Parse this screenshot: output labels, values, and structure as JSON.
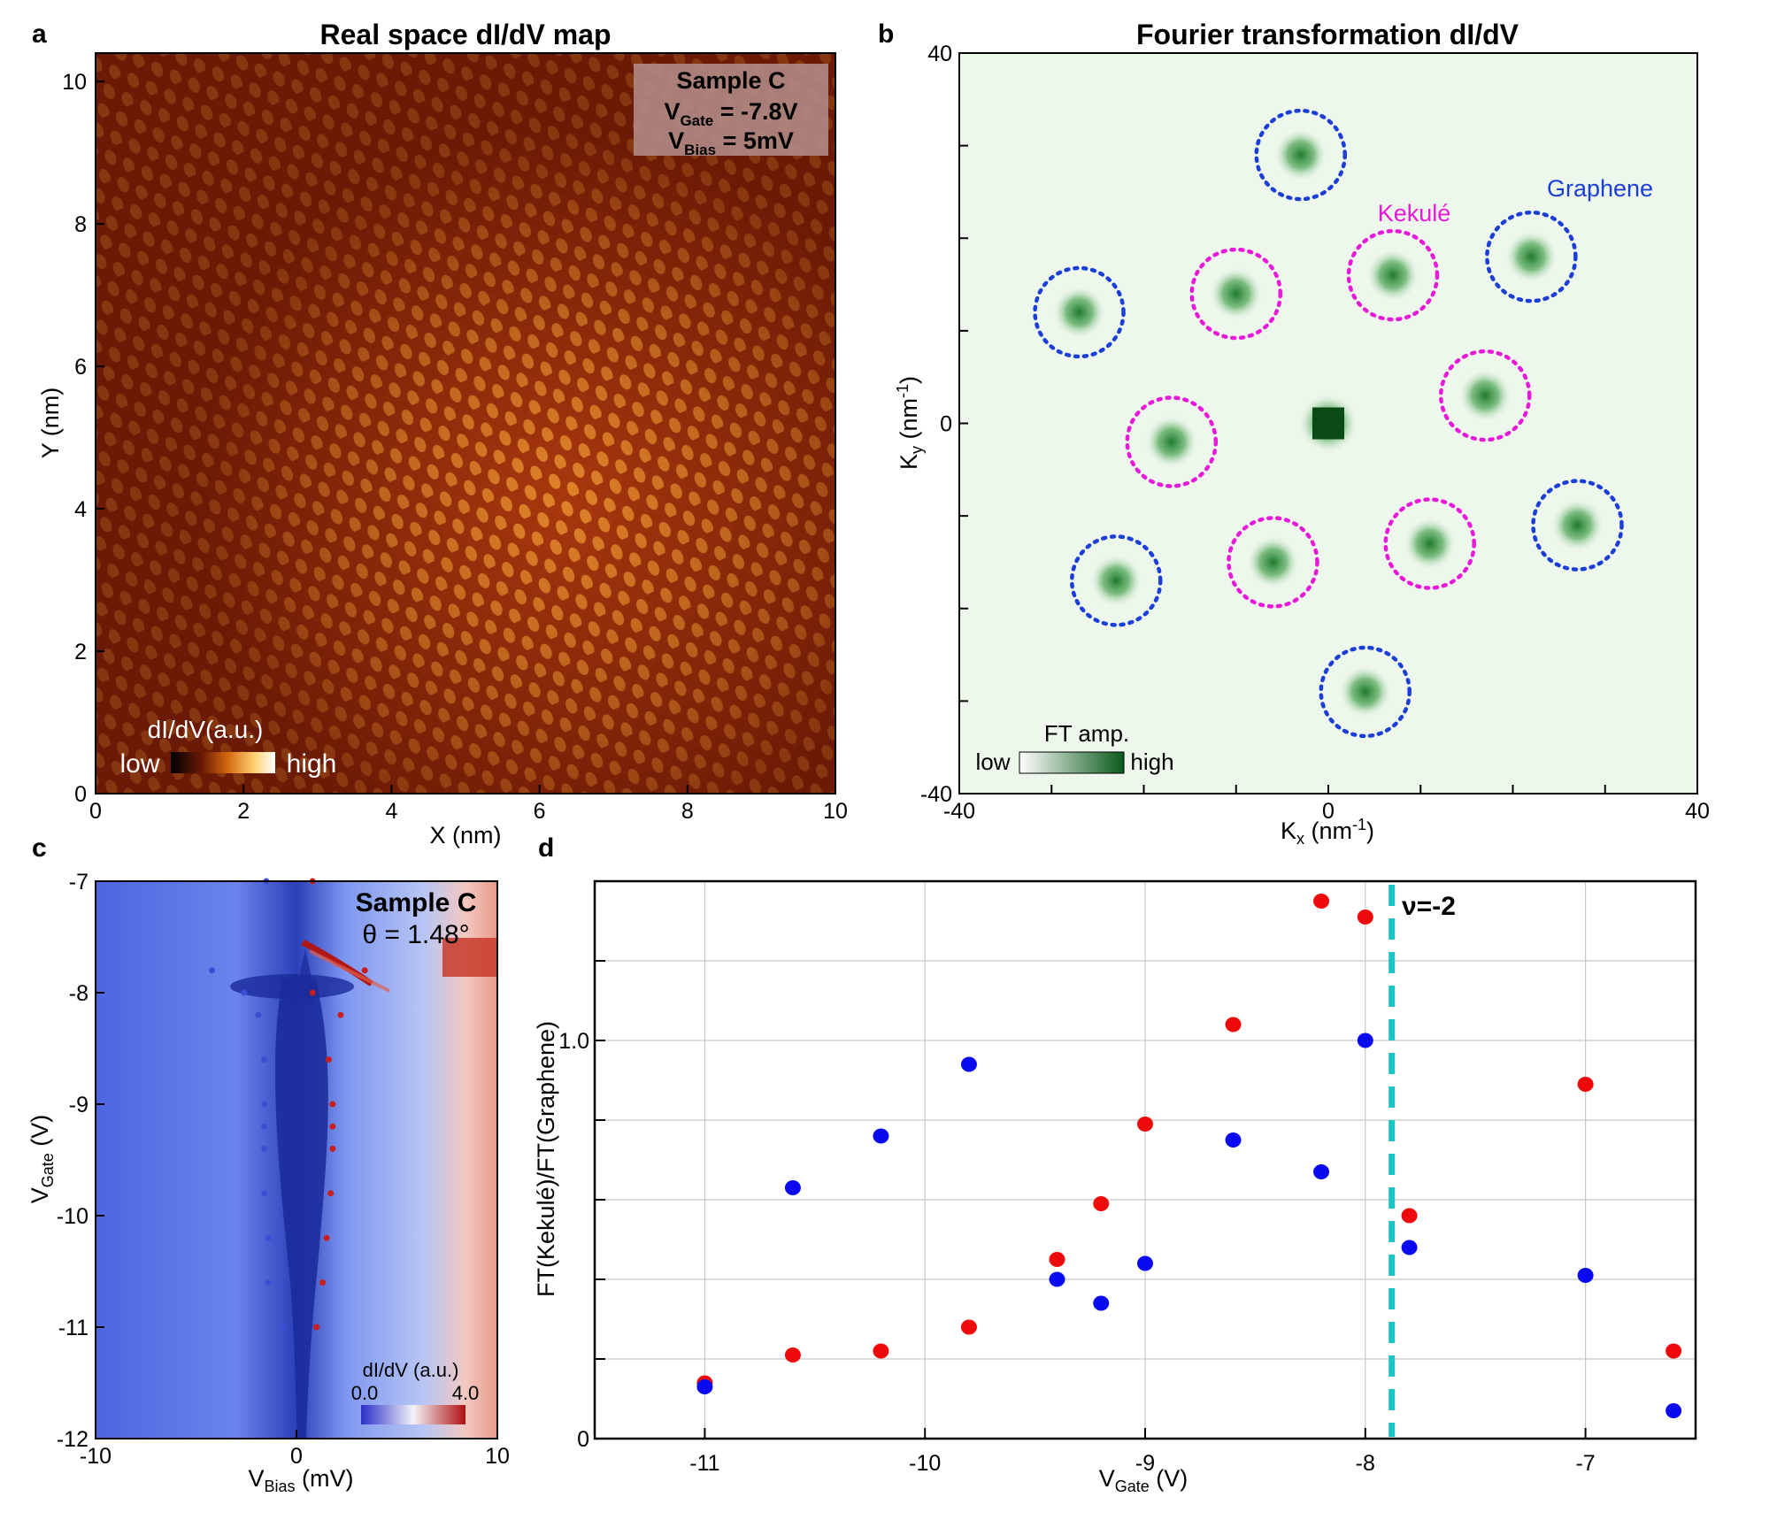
{
  "panels": {
    "a": {
      "letter": "a",
      "title": "Real space dI/dV map",
      "xlabel": "X (nm)",
      "ylabel": "Y (nm)",
      "xticks": [
        "0",
        "2",
        "4",
        "6",
        "8",
        "10"
      ],
      "yticks": [
        "0",
        "2",
        "4",
        "6",
        "8",
        "10"
      ],
      "info": {
        "line1": "Sample C",
        "v_gate_main": "V",
        "v_gate_sub": "Gate",
        "v_gate_val": " = -7.8V",
        "v_bias_main": "V",
        "v_bias_sub": "Bias",
        "v_bias_val": " = 5mV"
      },
      "colorbar": {
        "title": "dI/dV(a.u.)",
        "low": "low",
        "high": "high"
      },
      "colors": {
        "bg": "#6b1a05",
        "bright": "#ffb24a"
      }
    },
    "b": {
      "letter": "b",
      "title": "Fourier transformation dI/dV",
      "xlabel_main": "K",
      "xlabel_sub": "x",
      "xlabel_rest": " (nm",
      "xlabel_sup": "-1",
      "xlabel_end": ")",
      "ylabel_main": "K",
      "ylabel_sub": "y",
      "ylabel_rest": " (nm",
      "ylabel_sup": "-1",
      "ylabel_end": ")",
      "xticks": [
        "-40",
        "0",
        "40"
      ],
      "yticks": [
        "-40",
        "0",
        "40"
      ],
      "kekule_label": "Kekulé",
      "graphene_label": "Graphene",
      "colorbar": {
        "title": "FT amp.",
        "low": "low",
        "high": "high"
      },
      "colors": {
        "kekule": "#e81ad9",
        "graphene": "#1a3ed6",
        "spot": "#2f8f3a"
      },
      "graphene_spots": [
        [
          -3,
          29
        ],
        [
          22,
          18
        ],
        [
          -27,
          12
        ],
        [
          27,
          -11
        ],
        [
          -23,
          -17
        ],
        [
          4,
          -29
        ]
      ],
      "kekule_spots": [
        [
          -10,
          14
        ],
        [
          7,
          16
        ],
        [
          -17,
          -2
        ],
        [
          17,
          3
        ],
        [
          -6,
          -15
        ],
        [
          11,
          -13
        ]
      ]
    },
    "c": {
      "letter": "c",
      "info_title": "Sample C",
      "info_theta": "θ = 1.48°",
      "xlabel_main": "V",
      "xlabel_sub": "Bias",
      "xlabel_rest": " (mV)",
      "ylabel_main": "V",
      "ylabel_sub": "Gate",
      "ylabel_rest": " (V)",
      "xticks": [
        "-10",
        "0",
        "10"
      ],
      "yticks": [
        "-7",
        "-8",
        "-9",
        "-10",
        "-11",
        "-12"
      ],
      "colorbar": {
        "title": "dI/dV (a.u.)",
        "min": "0.0",
        "max": "4.0"
      },
      "colors": {
        "blue": "#3b4fd4",
        "red": "#c81e1e"
      },
      "blue_points": [
        [
          -1.5,
          -7.0
        ],
        [
          -4.2,
          -7.8
        ],
        [
          -2.6,
          -8.0
        ],
        [
          -1.9,
          -8.2
        ],
        [
          -1.6,
          -8.6
        ],
        [
          -1.6,
          -9.0
        ],
        [
          -1.6,
          -9.2
        ],
        [
          -1.6,
          -9.4
        ],
        [
          -1.6,
          -9.8
        ],
        [
          -1.4,
          -10.2
        ],
        [
          -1.4,
          -10.6
        ],
        [
          -0.7,
          -11.0
        ]
      ],
      "red_points": [
        [
          0.8,
          -7.0
        ],
        [
          3.4,
          -7.8
        ],
        [
          0.8,
          -8.0
        ],
        [
          2.2,
          -8.2
        ],
        [
          1.6,
          -8.6
        ],
        [
          1.8,
          -9.0
        ],
        [
          1.8,
          -9.2
        ],
        [
          1.8,
          -9.4
        ],
        [
          1.7,
          -9.8
        ],
        [
          1.5,
          -10.2
        ],
        [
          1.3,
          -10.6
        ],
        [
          1.0,
          -11.0
        ]
      ]
    },
    "d": {
      "letter": "d",
      "nu_label": "ν=-2",
      "colors": {
        "blue": "#0a0af0",
        "red": "#ee0a0a",
        "line": "#1cc4c4"
      }
    }
  },
  "chart_data": {
    "type": "scatter",
    "title": "",
    "xlabel": "V_Gate (V)",
    "ylabel": "FT(Kekulé)/FT(Graphene)",
    "xlim": [
      -11.5,
      -6.5
    ],
    "ylim": [
      0,
      1.4
    ],
    "xticks": [
      "-11",
      "-10",
      "-9",
      "-8",
      "-7"
    ],
    "yticks": [
      "0",
      "1.0"
    ],
    "vline": -7.88,
    "series": [
      {
        "name": "red",
        "x": [
          -11.0,
          -10.6,
          -10.2,
          -9.8,
          -9.4,
          -9.2,
          -9.0,
          -8.6,
          -8.2,
          -8.0,
          -7.8,
          -7.0,
          -6.6
        ],
        "y": [
          0.14,
          0.21,
          0.22,
          0.28,
          0.45,
          0.59,
          0.79,
          1.04,
          1.35,
          1.31,
          0.56,
          0.89,
          0.22
        ]
      },
      {
        "name": "blue",
        "x": [
          -11.0,
          -10.6,
          -10.2,
          -9.8,
          -9.4,
          -9.2,
          -9.0,
          -8.6,
          -8.2,
          -8.0,
          -7.8,
          -7.0,
          -6.6
        ],
        "y": [
          0.13,
          0.63,
          0.76,
          0.94,
          0.4,
          0.34,
          0.44,
          0.75,
          0.67,
          1.0,
          0.48,
          0.41,
          0.07
        ]
      }
    ]
  }
}
